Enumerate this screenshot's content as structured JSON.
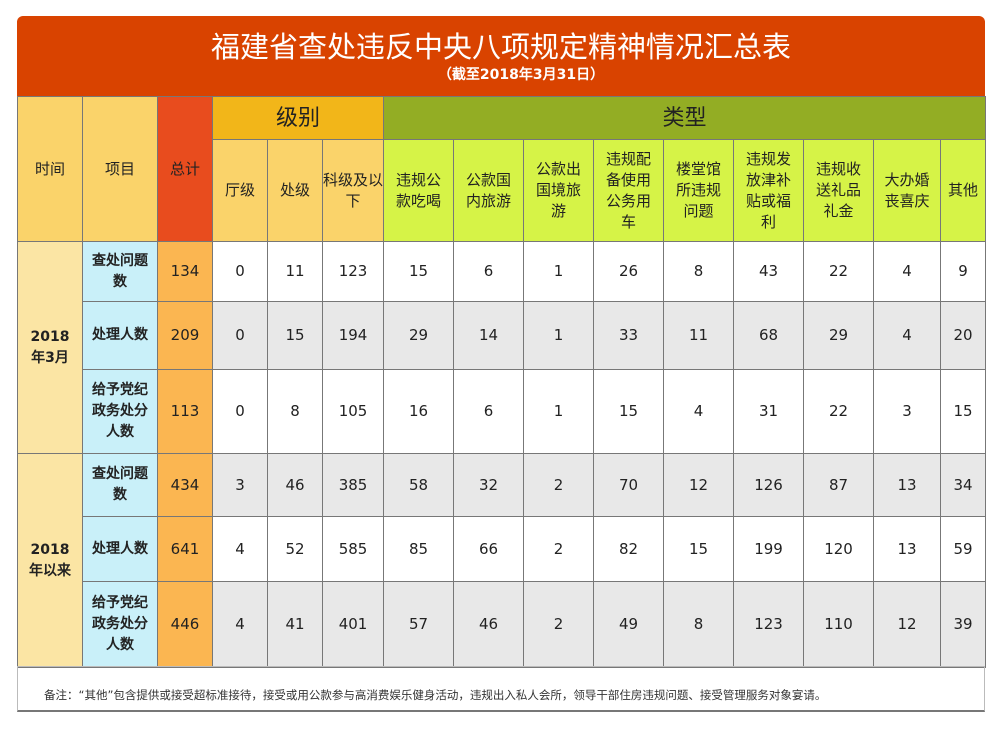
{
  "title": "福建省查处违反中央八项规定精神情况汇总表",
  "subtitle": "（截至2018年3月31日）",
  "headers": {
    "time": "时间",
    "item": "项目",
    "total": "总计",
    "level_group": "级别",
    "type_group": "类型",
    "levels": [
      "厅级",
      "处级",
      "科级及以下"
    ],
    "types": [
      "违规公款吃喝",
      "公款国内旅游",
      "公款出国境旅游",
      "违规配备使用公务用车",
      "楼堂馆所违规问题",
      "违规发放津补贴或福利",
      "违规收送礼品礼金",
      "大办婚丧喜庆",
      "其他"
    ]
  },
  "periods": [
    {
      "label": "2018年3月",
      "rows": [
        {
          "item": "查处问题数",
          "values": [
            "134",
            "0",
            "11",
            "123",
            "15",
            "6",
            "1",
            "26",
            "8",
            "43",
            "22",
            "4",
            "9"
          ]
        },
        {
          "item": "处理人数",
          "values": [
            "209",
            "0",
            "15",
            "194",
            "29",
            "14",
            "1",
            "33",
            "11",
            "68",
            "29",
            "4",
            "20"
          ]
        },
        {
          "item": "给予党纪政务处分人数",
          "values": [
            "113",
            "0",
            "8",
            "105",
            "16",
            "6",
            "1",
            "15",
            "4",
            "31",
            "22",
            "3",
            "15"
          ]
        }
      ]
    },
    {
      "label": "2018年以来",
      "rows": [
        {
          "item": "查处问题数",
          "values": [
            "434",
            "3",
            "46",
            "385",
            "58",
            "32",
            "2",
            "70",
            "12",
            "126",
            "87",
            "13",
            "34"
          ]
        },
        {
          "item": "处理人数",
          "values": [
            "641",
            "4",
            "52",
            "585",
            "85",
            "66",
            "2",
            "82",
            "15",
            "199",
            "120",
            "13",
            "59"
          ]
        },
        {
          "item": "给予党纪政务处分人数",
          "values": [
            "446",
            "4",
            "41",
            "401",
            "57",
            "46",
            "2",
            "49",
            "8",
            "123",
            "110",
            "12",
            "39"
          ]
        }
      ]
    }
  ],
  "note": "备注：“其他”包含提供或接受超标准接待，接受或用公款参与高消费娱乐健身活动，违规出入私人会所，领导干部住房违规问题、接受管理服务对象宴请。"
}
